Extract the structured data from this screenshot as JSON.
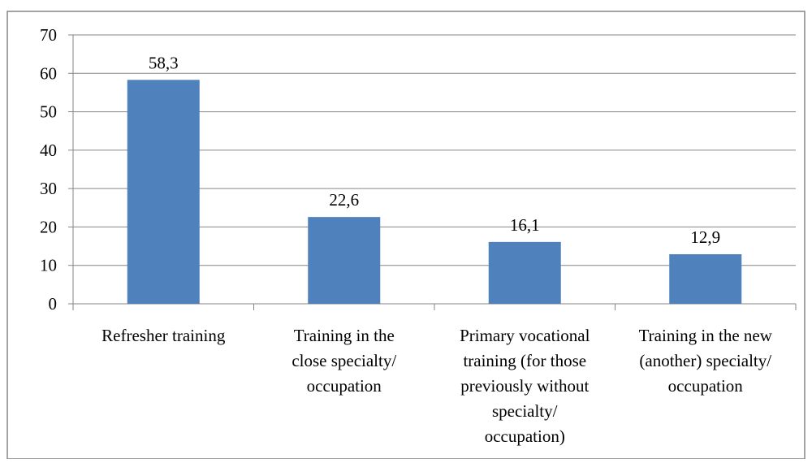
{
  "chart_data": {
    "type": "bar",
    "title": "",
    "xlabel": "",
    "ylabel": "",
    "categories": [
      [
        "Refresher training"
      ],
      [
        "Training in the",
        "close specialty/",
        "occupation"
      ],
      [
        "Primary vocational",
        "training (for those",
        "previously without",
        "specialty/",
        "occupation)"
      ],
      [
        "Training in the new",
        "(another) specialty/",
        "occupation"
      ]
    ],
    "values": [
      58.3,
      22.6,
      16.1,
      12.9
    ],
    "data_labels": [
      "58,3",
      "22,6",
      "16,1",
      "12,9"
    ],
    "y_ticks": [
      0,
      10,
      20,
      30,
      40,
      50,
      60,
      70
    ],
    "ylim": [
      0,
      70
    ],
    "grid": true,
    "legend": "none",
    "colors": {
      "bar": "#4F81BD",
      "grid": "#868686",
      "axis": "#868686",
      "frame": "#868686"
    }
  }
}
